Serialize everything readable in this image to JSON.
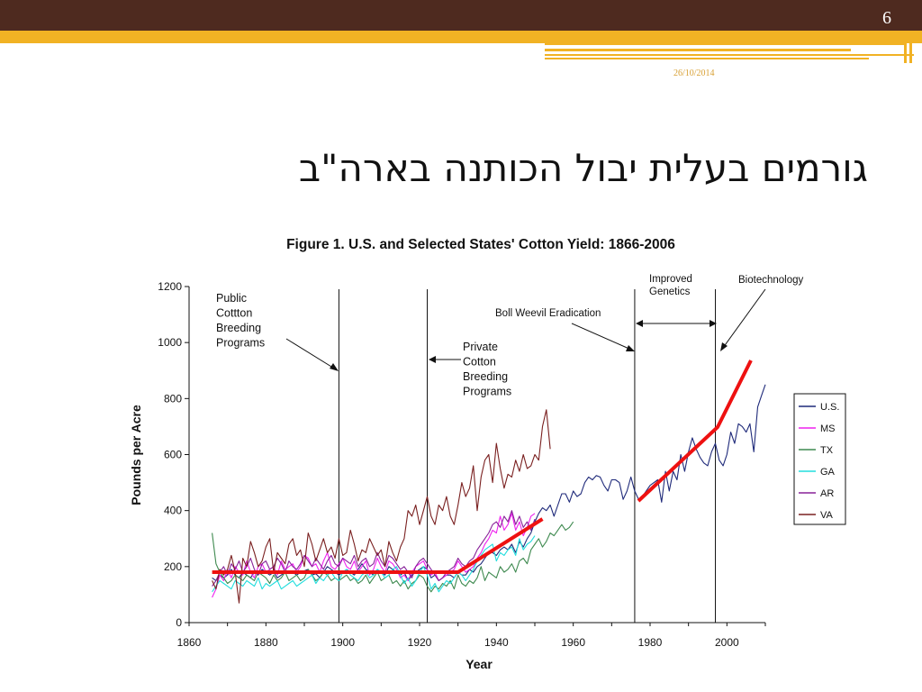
{
  "slide": {
    "number": "6",
    "date": "26/10/2014",
    "title": "גורמים בעלית יבול הכותנה בארה\"ב"
  },
  "theme": {
    "dark": "#4e2a1f",
    "gold": "#f1b224",
    "trend": "#ee1111"
  },
  "chart_data": {
    "type": "line",
    "title": "Figure 1.  U.S. and Selected States' Cotton Yield: 1866-2006",
    "xlabel": "Year",
    "ylabel": "Pounds per Acre",
    "xlim": [
      1860,
      2010
    ],
    "ylim": [
      0,
      1200
    ],
    "x_ticks": [
      1860,
      1880,
      1900,
      1920,
      1940,
      1960,
      1980,
      2000
    ],
    "y_ticks": [
      0,
      200,
      400,
      600,
      800,
      1000,
      1200
    ],
    "grid": false,
    "legend_position": "right",
    "series": [
      {
        "name": "U.S.",
        "color": "#1f2a7a",
        "start": 1866,
        "values": [
          160,
          150,
          170,
          160,
          170,
          190,
          170,
          160,
          180,
          170,
          160,
          180,
          170,
          190,
          180,
          170,
          180,
          160,
          170,
          180,
          175,
          180,
          170,
          180,
          185,
          190,
          170,
          175,
          160,
          180,
          200,
          190,
          180,
          170,
          180,
          190,
          180,
          170,
          190,
          210,
          190,
          180,
          170,
          190,
          180,
          170,
          200,
          190,
          180,
          170,
          180,
          150,
          170,
          180,
          190,
          200,
          190,
          160,
          170,
          150,
          160,
          170,
          170,
          160,
          180,
          170,
          170,
          190,
          180,
          200,
          210,
          230,
          250,
          250,
          240,
          260,
          270,
          260,
          280,
          250,
          290,
          270,
          300,
          320,
          360,
          390,
          410,
          400,
          420,
          380,
          420,
          460,
          460,
          430,
          470,
          450,
          460,
          500,
          520,
          510,
          525,
          520,
          490,
          470,
          510,
          510,
          500,
          440,
          470,
          520,
          470,
          440,
          450,
          470,
          490,
          500,
          510,
          430,
          540,
          470,
          540,
          510,
          600,
          540,
          610,
          660,
          620,
          590,
          570,
          560,
          610,
          640,
          580,
          560,
          600,
          680,
          640,
          710,
          700,
          680,
          710,
          610,
          770,
          810,
          850
        ]
      },
      {
        "name": "MS",
        "color": "#ee22ee",
        "start": 1866,
        "values": [
          90,
          120,
          170,
          150,
          190,
          160,
          200,
          180,
          170,
          220,
          180,
          160,
          200,
          210,
          180,
          190,
          200,
          170,
          220,
          190,
          200,
          210,
          180,
          200,
          240,
          230,
          200,
          210,
          180,
          220,
          250,
          200,
          190,
          210,
          230,
          200,
          190,
          220,
          180,
          200,
          220,
          170,
          190,
          230,
          200,
          180,
          220,
          210,
          190,
          160,
          170,
          150,
          180,
          200,
          210,
          220,
          190,
          170,
          180,
          150,
          160,
          170,
          180,
          190,
          220,
          200,
          180,
          190,
          200,
          230,
          250,
          280,
          300,
          330,
          320,
          380,
          330,
          350,
          390,
          330,
          360,
          310,
          340,
          380,
          390
        ]
      },
      {
        "name": "TX",
        "color": "#3f8a50",
        "start": 1866,
        "values": [
          320,
          210,
          180,
          160,
          140,
          150,
          170,
          160,
          150,
          170,
          160,
          150,
          180,
          170,
          160,
          140,
          170,
          150,
          160,
          180,
          150,
          160,
          170,
          150,
          160,
          190,
          170,
          150,
          160,
          180,
          170,
          150,
          160,
          150,
          160,
          170,
          150,
          160,
          140,
          150,
          170,
          140,
          160,
          180,
          150,
          160,
          170,
          140,
          150,
          130,
          150,
          120,
          140,
          150,
          170,
          160,
          130,
          110,
          130,
          120,
          140,
          130,
          150,
          120,
          170,
          140,
          130,
          150,
          140,
          160,
          200,
          150,
          180,
          170,
          160,
          200,
          180,
          190,
          210,
          180,
          220,
          230,
          210,
          260,
          280,
          300,
          270,
          290,
          320,
          310,
          330,
          350,
          330,
          340,
          360
        ]
      },
      {
        "name": "GA",
        "color": "#22dddd",
        "start": 1866,
        "values": [
          110,
          130,
          150,
          140,
          130,
          120,
          150,
          140,
          130,
          150,
          140,
          130,
          160,
          120,
          140,
          130,
          140,
          150,
          120,
          130,
          140,
          150,
          130,
          140,
          150,
          160,
          170,
          140,
          160,
          150,
          170,
          180,
          160,
          150,
          180,
          190,
          170,
          160,
          150,
          170,
          180,
          160,
          170,
          190,
          180,
          160,
          170,
          190,
          200,
          170,
          140,
          160,
          130,
          150,
          180,
          200,
          170,
          120,
          140,
          110,
          130,
          150,
          140,
          160,
          180,
          170,
          150,
          170,
          190,
          220,
          240,
          260,
          270,
          280,
          220,
          250,
          240,
          260,
          270,
          240,
          300,
          260,
          280,
          290,
          310
        ]
      },
      {
        "name": "AR",
        "color": "#882299",
        "start": 1866,
        "values": [
          130,
          150,
          180,
          200,
          170,
          210,
          190,
          220,
          180,
          200,
          230,
          190,
          170,
          210,
          220,
          190,
          200,
          230,
          210,
          180,
          220,
          200,
          190,
          210,
          240,
          220,
          200,
          230,
          210,
          190,
          220,
          240,
          210,
          200,
          230,
          220,
          210,
          240,
          200,
          220,
          230,
          200,
          210,
          250,
          220,
          200,
          240,
          230,
          210,
          190,
          200,
          180,
          160,
          200,
          220,
          230,
          210,
          190,
          170,
          150,
          160,
          180,
          190,
          200,
          230,
          210,
          200,
          220,
          230,
          260,
          280,
          300,
          320,
          350,
          360,
          340,
          380,
          360,
          400,
          350,
          380,
          340,
          360,
          330,
          370
        ]
      },
      {
        "name": "VA",
        "color": "#7a2020",
        "start": 1866,
        "values": [
          150,
          120,
          190,
          170,
          190,
          240,
          180,
          70,
          230,
          200,
          290,
          250,
          200,
          220,
          270,
          300,
          180,
          250,
          230,
          210,
          280,
          300,
          240,
          260,
          200,
          320,
          280,
          220,
          260,
          300,
          250,
          270,
          230,
          300,
          240,
          250,
          330,
          280,
          220,
          260,
          250,
          300,
          270,
          240,
          260,
          200,
          290,
          250,
          220,
          270,
          300,
          400,
          380,
          420,
          350,
          400,
          450,
          380,
          350,
          420,
          400,
          450,
          380,
          350,
          420,
          500,
          450,
          480,
          560,
          400,
          520,
          580,
          600,
          500,
          640,
          550,
          480,
          530,
          520,
          580,
          540,
          600,
          550,
          560,
          600,
          580,
          700,
          760,
          620
        ]
      }
    ],
    "trend": {
      "name": "trend",
      "points": [
        [
          1866,
          180
        ],
        [
          1930,
          180
        ],
        [
          1952,
          370
        ]
      ]
    },
    "vlines": [
      1899,
      1922,
      1976,
      1997
    ],
    "annotations": [
      {
        "text": [
          "Public",
          "Cottton",
          "Breeding",
          "Programs"
        ]
      },
      {
        "text": [
          "Private",
          "Cotton",
          "Breeding",
          "Programs"
        ]
      },
      {
        "text": [
          "Boll Weevil Eradication"
        ]
      },
      {
        "text": [
          "Improved",
          "Genetics"
        ]
      },
      {
        "text": [
          "Biotechnology"
        ]
      }
    ]
  }
}
